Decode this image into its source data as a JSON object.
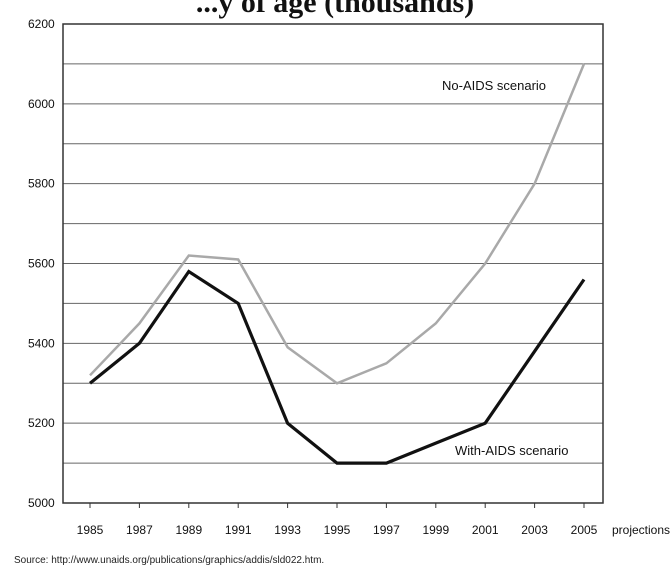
{
  "chart_data": {
    "type": "line",
    "title": "...y of age (thousands)",
    "x": [
      "1985",
      "1987",
      "1989",
      "1991",
      "1993",
      "1995",
      "1997",
      "1999",
      "2001",
      "2003",
      "2005"
    ],
    "x_trailing_label": "projections",
    "ylim": [
      5000,
      6200
    ],
    "yticks": [
      "5000",
      "5200",
      "5400",
      "5600",
      "5800",
      "6000",
      "6200"
    ],
    "grid": true,
    "series": [
      {
        "name": "No-AIDS scenario",
        "color": "#a9a9a9",
        "values": [
          5320,
          5450,
          5620,
          5610,
          5390,
          5300,
          5350,
          5450,
          5600,
          5800,
          6100
        ]
      },
      {
        "name": "With-AIDS scenario",
        "color": "#111111",
        "values": [
          5300,
          5400,
          5580,
          5500,
          5200,
          5100,
          5100,
          5150,
          5200,
          5380,
          5560
        ]
      }
    ],
    "source": "Source: http://www.unaids.org/publications/graphics/addis/sld022.htm."
  }
}
